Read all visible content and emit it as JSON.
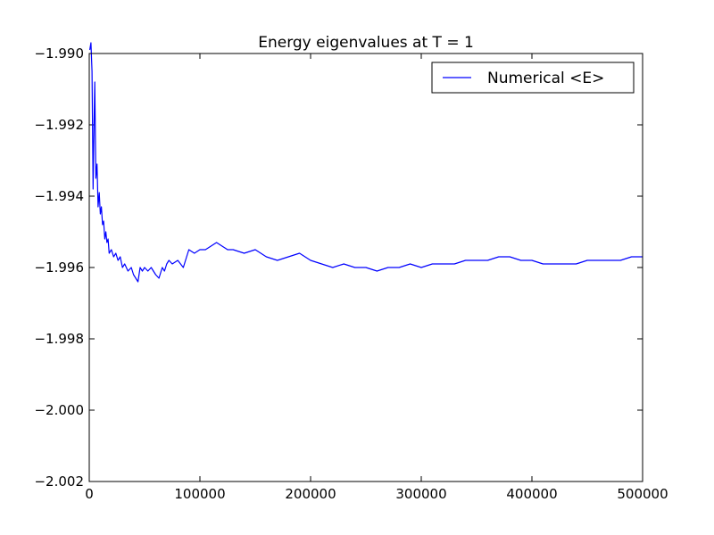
{
  "chart_data": {
    "type": "line",
    "title": "Energy eigenvalues at T = 1",
    "xlabel": "",
    "ylabel": "",
    "xlim": [
      0,
      500000
    ],
    "ylim": [
      -1.99,
      -2.002
    ],
    "y_axis_inverted": true,
    "grid": false,
    "legend_position": "top-right",
    "xticks": [
      0,
      100000,
      200000,
      300000,
      400000,
      500000
    ],
    "xtick_labels": [
      "0",
      "100000",
      "200000",
      "300000",
      "400000",
      "500000"
    ],
    "yticks": [
      -2.002,
      -2.0,
      -1.998,
      -1.996,
      -1.994,
      -1.992,
      -1.99
    ],
    "ytick_labels": [
      "−2.002",
      "−2.000",
      "−1.998",
      "−1.996",
      "−1.994",
      "−1.992",
      "−1.990"
    ],
    "series": [
      {
        "name": "Numerical <E>",
        "color": "#0000ff",
        "x": [
          500,
          1500,
          2500,
          3500,
          4000,
          5000,
          6000,
          7000,
          8000,
          9000,
          10000,
          11000,
          12000,
          13000,
          14000,
          15000,
          16000,
          17000,
          18000,
          20000,
          22000,
          24000,
          26000,
          28000,
          30000,
          32000,
          35000,
          38000,
          40000,
          42000,
          44000,
          46000,
          48000,
          50000,
          53000,
          56000,
          60000,
          63000,
          66000,
          68000,
          70000,
          72000,
          75000,
          80000,
          85000,
          88000,
          90000,
          95000,
          100000,
          105000,
          110000,
          115000,
          120000,
          125000,
          130000,
          140000,
          150000,
          160000,
          170000,
          180000,
          190000,
          200000,
          210000,
          220000,
          230000,
          240000,
          250000,
          260000,
          270000,
          280000,
          290000,
          300000,
          310000,
          320000,
          330000,
          340000,
          350000,
          360000,
          370000,
          380000,
          390000,
          400000,
          410000,
          420000,
          430000,
          440000,
          450000,
          460000,
          470000,
          480000,
          490000,
          500000
        ],
        "values": [
          -1.9899,
          -1.9897,
          -1.9905,
          -1.9938,
          -1.9925,
          -1.9908,
          -1.9935,
          -1.9931,
          -1.9943,
          -1.9939,
          -1.9945,
          -1.9943,
          -1.9948,
          -1.9947,
          -1.9952,
          -1.995,
          -1.9953,
          -1.9952,
          -1.9956,
          -1.9955,
          -1.9957,
          -1.9956,
          -1.9958,
          -1.9957,
          -1.996,
          -1.9959,
          -1.9961,
          -1.996,
          -1.9962,
          -1.9963,
          -1.9964,
          -1.996,
          -1.9961,
          -1.996,
          -1.9961,
          -1.996,
          -1.9962,
          -1.9963,
          -1.996,
          -1.9961,
          -1.9959,
          -1.9958,
          -1.9959,
          -1.9958,
          -1.996,
          -1.9957,
          -1.9955,
          -1.9956,
          -1.9955,
          -1.9955,
          -1.9954,
          -1.9953,
          -1.9954,
          -1.9955,
          -1.9955,
          -1.9956,
          -1.9955,
          -1.9957,
          -1.9958,
          -1.9957,
          -1.9956,
          -1.9958,
          -1.9959,
          -1.996,
          -1.9959,
          -1.996,
          -1.996,
          -1.9961,
          -1.996,
          -1.996,
          -1.9959,
          -1.996,
          -1.9959,
          -1.9959,
          -1.9959,
          -1.9958,
          -1.9958,
          -1.9958,
          -1.9957,
          -1.9957,
          -1.9958,
          -1.9958,
          -1.9959,
          -1.9959,
          -1.9959,
          -1.9959,
          -1.9958,
          -1.9958,
          -1.9958,
          -1.9958,
          -1.9957,
          -1.9957
        ]
      }
    ]
  }
}
